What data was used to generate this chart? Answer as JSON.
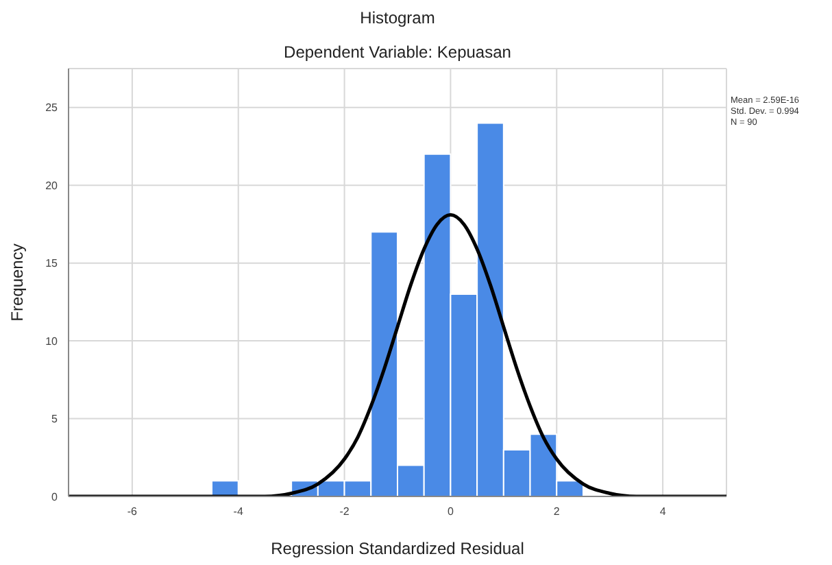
{
  "chart_data": {
    "type": "histogram",
    "title": "Histogram",
    "subtitle": "Dependent Variable: Kepuasan",
    "xlabel": "Regression Standardized Residual",
    "ylabel": "Frequency",
    "bins": [
      -4.5,
      -4,
      -3.5,
      -3,
      -2.5,
      -2,
      -1.5,
      -1,
      -0.5,
      0,
      0.5,
      1,
      1.5,
      2,
      2.5
    ],
    "values": [
      1,
      0,
      0,
      1,
      1,
      1,
      17,
      2,
      22,
      13,
      24,
      3,
      4,
      1
    ],
    "color": "#4a8ae6",
    "series": [
      {
        "type": "line",
        "color": "#000000",
        "x": [
          -7.2,
          -4,
          -3.5,
          -3,
          -2.5,
          -2,
          -1.75,
          -1.5,
          -1.25,
          -1,
          -0.75,
          -0.5,
          -0.25,
          0,
          0.25,
          0.5,
          0.75,
          1,
          1.25,
          1.5,
          1.75,
          2,
          2.5,
          3,
          3.5,
          4,
          5.2
        ],
        "values": [
          0,
          0,
          0,
          0.2,
          0.8,
          2.4,
          3.8,
          5.8,
          8.2,
          10.9,
          13.6,
          15.9,
          17.5,
          18.1,
          17.5,
          15.9,
          13.6,
          10.9,
          8.2,
          5.8,
          3.8,
          2.4,
          0.8,
          0.2,
          0,
          0,
          0
        ]
      }
    ],
    "xlim": [
      -7.2,
      5.2
    ],
    "xticks": [
      -6,
      -4,
      -2,
      0,
      2,
      4
    ],
    "ylim": [
      0,
      27.5
    ],
    "yticks": [
      0,
      5,
      10,
      15,
      20,
      25
    ],
    "grid": true,
    "annotations": [
      "Mean = 2.59E-16",
      "Std. Dev. = 0.994",
      "N = 90"
    ]
  }
}
